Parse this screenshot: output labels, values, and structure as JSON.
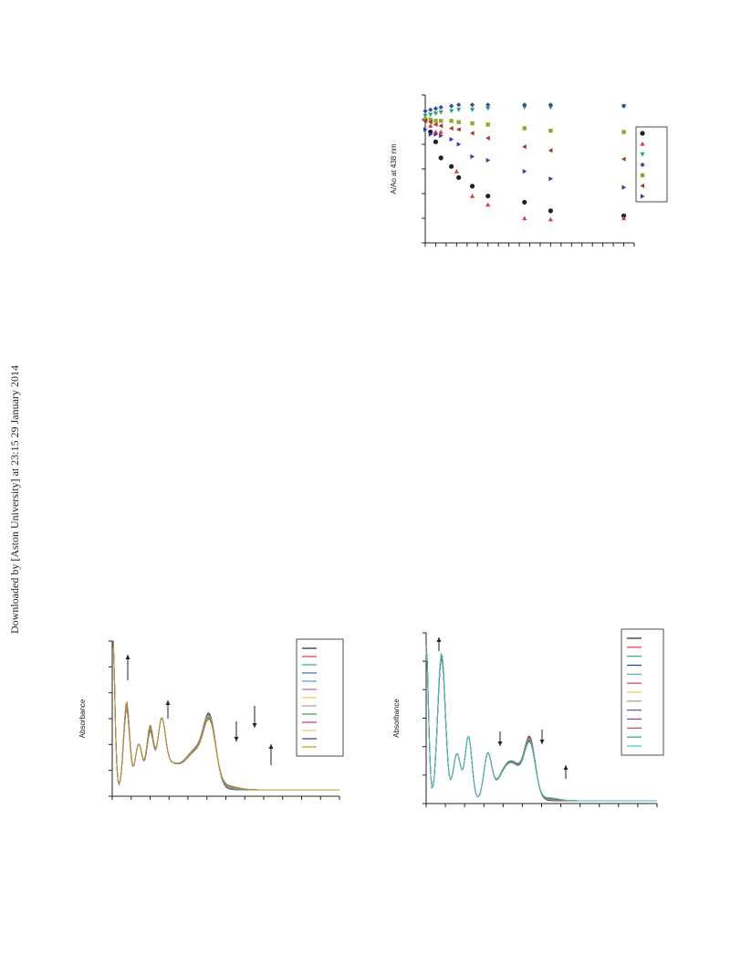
{
  "watermark": "Downloaded by [Aston University] at 23:15 29 January 2014",
  "chart_data": [
    {
      "type": "scatter",
      "title": "",
      "xlabel": "",
      "ylabel": "A/Ao at 438 nm",
      "ylim": [
        0,
        1.2
      ],
      "xlim": [
        0,
        20
      ],
      "grid": false,
      "legend_position": "right",
      "legend_markers": [
        "circle",
        "triangle-up",
        "triangle-down",
        "diamond",
        "square",
        "triangle-left",
        "triangle-right"
      ],
      "series": [
        {
          "marker": "circle",
          "color": "#222222",
          "x": [
            0,
            0.5,
            1,
            1.5,
            2.5,
            3.2,
            4.5,
            6,
            9.5,
            12,
            19
          ],
          "y": [
            1.0,
            0.9,
            0.82,
            0.69,
            0.62,
            0.53,
            0.46,
            0.38,
            0.33,
            0.26,
            0.22
          ]
        },
        {
          "marker": "triangle-up",
          "color": "#e03a3a",
          "x": [
            0,
            0.5,
            1,
            1.5,
            3,
            4.5,
            6,
            9.5,
            12,
            19
          ],
          "y": [
            1.0,
            0.95,
            0.9,
            0.9,
            0.58,
            0.38,
            0.31,
            0.2,
            0.19,
            0.2
          ]
        },
        {
          "marker": "triangle-down",
          "color": "#2aa37a",
          "x": [
            0,
            0.5,
            1,
            1.5,
            2.5,
            3.2,
            4.5,
            6,
            9.5,
            12,
            19
          ],
          "y": [
            1.03,
            1.04,
            1.05,
            1.06,
            1.07,
            1.08,
            1.08,
            1.09,
            1.1,
            1.1,
            1.11
          ]
        },
        {
          "marker": "diamond",
          "color": "#3a4a9a",
          "x": [
            0,
            0.5,
            1,
            1.5,
            2.5,
            3.2,
            4.5,
            6,
            9.5,
            12,
            19
          ],
          "y": [
            1.07,
            1.08,
            1.09,
            1.1,
            1.11,
            1.12,
            1.12,
            1.12,
            1.12,
            1.12,
            1.11
          ]
        },
        {
          "marker": "square",
          "color": "#9aa32a",
          "x": [
            0,
            0.5,
            1,
            1.5,
            2.5,
            3.2,
            4.5,
            6,
            9.5,
            12,
            19
          ],
          "y": [
            1.0,
            1.0,
            0.99,
            0.99,
            0.99,
            0.98,
            0.97,
            0.96,
            0.93,
            0.91,
            0.9
          ]
        },
        {
          "marker": "triangle-left",
          "color": "#a03a2a",
          "x": [
            0,
            0.5,
            1,
            1.5,
            2.5,
            3.2,
            4.5,
            6,
            9.5,
            12,
            19
          ],
          "y": [
            0.99,
            0.98,
            0.96,
            0.95,
            0.93,
            0.92,
            0.89,
            0.85,
            0.78,
            0.75,
            0.68
          ]
        },
        {
          "marker": "triangle-right",
          "color": "#3a3aaa",
          "x": [
            0,
            0.5,
            1,
            1.5,
            2.5,
            3.2,
            4.5,
            6,
            9.5,
            12,
            19
          ],
          "y": [
            0.92,
            0.88,
            0.88,
            0.87,
            0.84,
            0.8,
            0.7,
            0.67,
            0.58,
            0.52,
            0.45
          ]
        }
      ]
    },
    {
      "type": "line",
      "title": "",
      "xlabel": "",
      "ylabel": "Absorbance",
      "ylim": [
        0,
        1.2
      ],
      "xlim": [
        200,
        800
      ],
      "grid": false,
      "legend_position": "right",
      "arrows": [
        "up",
        "up",
        "down",
        "down",
        "up"
      ],
      "series": [
        {
          "color": "#222222"
        },
        {
          "color": "#e03a3a"
        },
        {
          "color": "#3aaa7a"
        },
        {
          "color": "#3a6aaa"
        },
        {
          "color": "#5aa3c3"
        },
        {
          "color": "#c05aa3"
        },
        {
          "color": "#e0d93a"
        },
        {
          "color": "#a3a3a3"
        },
        {
          "color": "#3a9a3a"
        },
        {
          "color": "#d02a7a"
        },
        {
          "color": "#d7d76a"
        },
        {
          "color": "#2a3a9a"
        },
        {
          "color": "#c39a2a"
        }
      ]
    },
    {
      "type": "line",
      "title": "",
      "xlabel": "",
      "ylabel": "Absorbance",
      "ylim": [
        0,
        1.2
      ],
      "xlim": [
        200,
        800
      ],
      "grid": false,
      "legend_position": "top-right",
      "arrows": [
        "up",
        "down",
        "down",
        "up"
      ],
      "series": [
        {
          "color": "#222222"
        },
        {
          "color": "#e03a3a"
        },
        {
          "color": "#2aa37a"
        },
        {
          "color": "#2a3a9a"
        },
        {
          "color": "#4ab3c3"
        },
        {
          "color": "#d03a7a"
        },
        {
          "color": "#e0d93a"
        },
        {
          "color": "#a3a36a"
        },
        {
          "color": "#5a5a9a"
        },
        {
          "color": "#a03a7a"
        },
        {
          "color": "#a05a4a"
        },
        {
          "color": "#2aa37a"
        },
        {
          "color": "#4ac3c3"
        }
      ]
    }
  ]
}
